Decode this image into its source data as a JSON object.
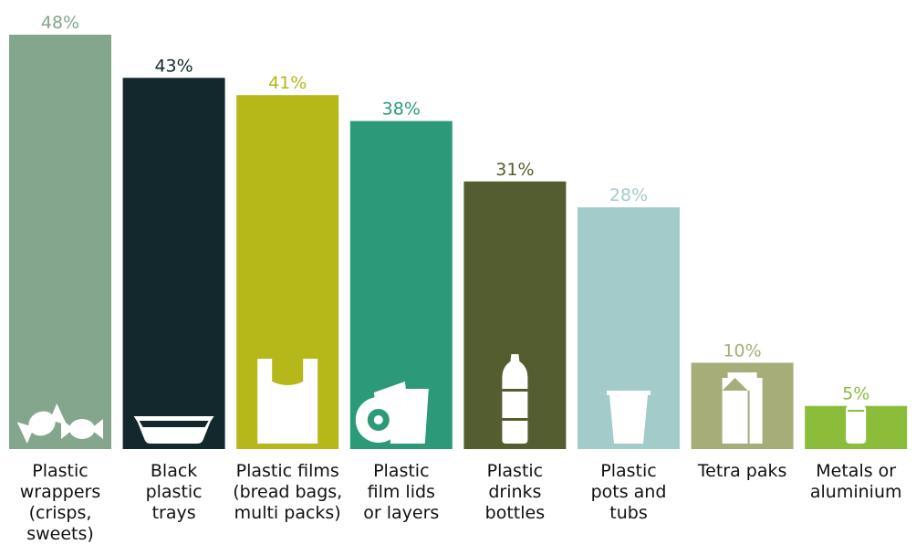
{
  "chart_data": {
    "type": "bar",
    "title": "",
    "xlabel": "",
    "ylabel": "",
    "ylim": [
      0,
      48
    ],
    "grid": false,
    "legend": "none",
    "categories": [
      [
        "Plastic",
        "wrappers",
        "(crisps,",
        "sweets)"
      ],
      [
        "Black",
        "plastic",
        "trays"
      ],
      [
        "Plastic films",
        "(bread bags,",
        "multi packs)"
      ],
      [
        "Plastic",
        "film lids",
        "or layers"
      ],
      [
        "Plastic",
        "drinks",
        "bottles"
      ],
      [
        "Plastic",
        "pots and",
        "tubs"
      ],
      [
        "Tetra paks"
      ],
      [
        "Metals or",
        "aluminium"
      ]
    ],
    "values": [
      48,
      43,
      41,
      38,
      31,
      28,
      10,
      5
    ],
    "value_labels": [
      "48%",
      "43%",
      "41%",
      "38%",
      "31%",
      "28%",
      "10%",
      "5%"
    ],
    "colors": [
      "#84a68c",
      "#13282c",
      "#b5b818",
      "#2c9a78",
      "#535d30",
      "#a3cbc9",
      "#a7ad78",
      "#8bbc3a"
    ],
    "icons": [
      "sweets-icon",
      "tray-icon",
      "carrier-bag-icon",
      "film-roll-icon",
      "bottle-icon",
      "pot-icon",
      "carton-icon",
      "can-icon"
    ]
  }
}
